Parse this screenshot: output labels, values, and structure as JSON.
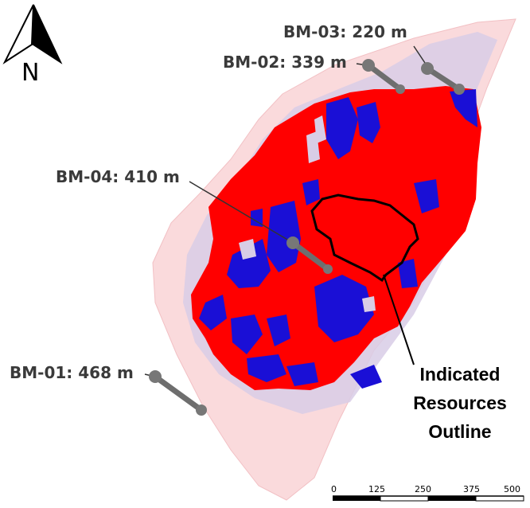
{
  "north_arrow": {
    "label": "N"
  },
  "drillholes": [
    {
      "id": "BM-03",
      "label": "BM-03: 220 m"
    },
    {
      "id": "BM-02",
      "label": "BM-02: 339 m"
    },
    {
      "id": "BM-04",
      "label": "BM-04: 410 m"
    },
    {
      "id": "BM-01",
      "label": "BM-01: 468 m"
    }
  ],
  "callout": {
    "lines": [
      "Indicated",
      "Resources",
      "Outline"
    ]
  },
  "scale_bar": {
    "ticks": [
      "0",
      "125",
      "250",
      "375",
      "500"
    ]
  },
  "colors": {
    "resource_high": "#ff0000",
    "resource_low": "#1a0fd6",
    "envelope_pink": "#fadadc",
    "envelope_lavender": "#d8cde6",
    "drillhole": "#6e6e6e",
    "outline": "#000000"
  }
}
